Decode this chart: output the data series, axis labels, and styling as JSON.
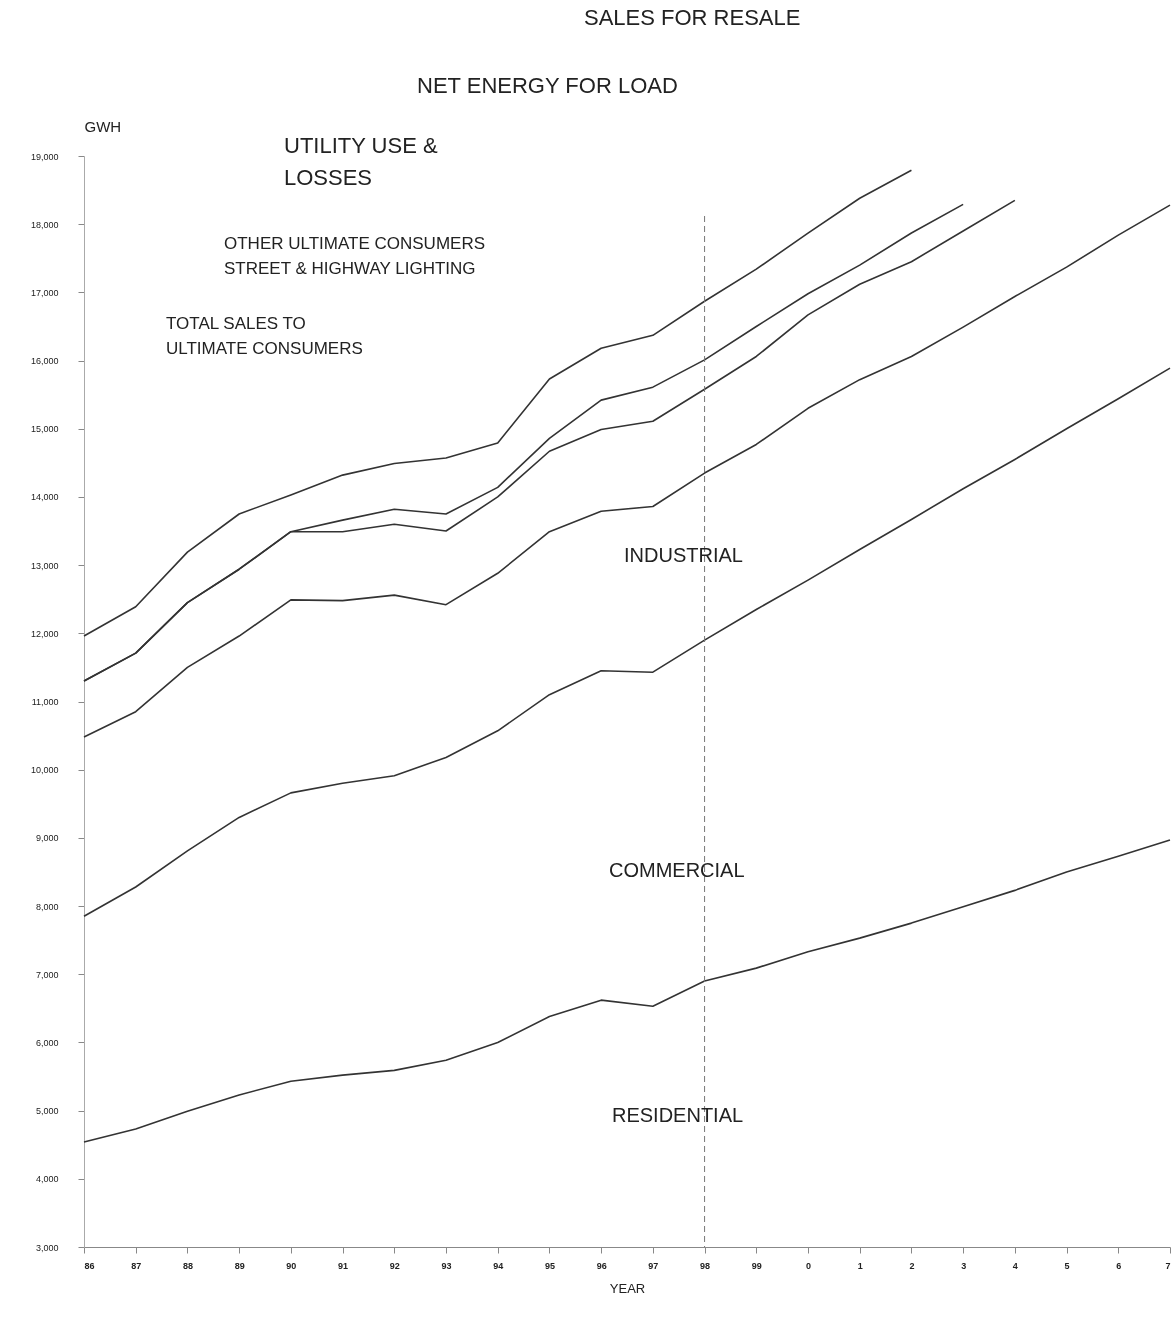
{
  "chart_data": {
    "type": "line",
    "xlabel": "YEAR",
    "ylabel": "GWH",
    "categories": [
      "86",
      "87",
      "88",
      "89",
      "90",
      "91",
      "92",
      "93",
      "94",
      "95",
      "96",
      "97",
      "98",
      "99",
      "0",
      "1",
      "2",
      "3",
      "4",
      "5",
      "6",
      "7"
    ],
    "ylim": [
      3000,
      19000
    ],
    "yticks": [
      {
        "value": 3000,
        "label": "3,000"
      },
      {
        "value": 4000,
        "label": "4,000"
      },
      {
        "value": 5000,
        "label": "5,000"
      },
      {
        "value": 6000,
        "label": "6,000"
      },
      {
        "value": 7000,
        "label": "7,000"
      },
      {
        "value": 8000,
        "label": "8,000"
      },
      {
        "value": 9000,
        "label": "9,000"
      },
      {
        "value": 10000,
        "label": "10,000"
      },
      {
        "value": 11000,
        "label": "11,000"
      },
      {
        "value": 12000,
        "label": "12,000"
      },
      {
        "value": 13000,
        "label": "13,000"
      },
      {
        "value": 14000,
        "label": "14,000"
      },
      {
        "value": 15000,
        "label": "15,000"
      },
      {
        "value": 16000,
        "label": "16,000"
      },
      {
        "value": 17000,
        "label": "17,000"
      },
      {
        "value": 18000,
        "label": "18,000"
      },
      {
        "value": 19000,
        "label": "19,000"
      }
    ],
    "grid": false,
    "marker": "none",
    "line_style": "solid",
    "series": [
      {
        "color": "#333333",
        "values": [
          4540,
          4730,
          4990,
          5230,
          5430,
          5520,
          5590,
          5740,
          6000,
          6380,
          6620,
          6530,
          6900,
          7090,
          7330,
          7530,
          7750,
          7990,
          8230,
          8500,
          8730,
          8970
        ]
      },
      {
        "color": "#333333",
        "values": [
          7850,
          8280,
          8810,
          9300,
          9660,
          9800,
          9910,
          10180,
          10570,
          11100,
          11450,
          11430,
          11900,
          12350,
          12780,
          13230,
          13670,
          14120,
          14550,
          15000,
          15440,
          15890
        ]
      },
      {
        "color": "#333333",
        "values": [
          10480,
          10850,
          11500,
          11960,
          12490,
          12480,
          12560,
          12420,
          12880,
          13490,
          13790,
          13860,
          14350,
          14770,
          15300,
          15720,
          16060,
          16490,
          16940,
          17370,
          17840,
          18280
        ]
      },
      {
        "color": "#333333",
        "values": [
          11300,
          11710,
          12450,
          12940,
          13490,
          13490,
          13600,
          13500,
          14000,
          14670,
          14990,
          15110,
          15580,
          16060,
          16670,
          17120,
          17450,
          17900,
          18350,
          null,
          null,
          null
        ]
      },
      {
        "color": "#333333",
        "values": [
          11300,
          11710,
          12450,
          12940,
          13490,
          13660,
          13820,
          13750,
          14140,
          14860,
          15420,
          15610,
          16010,
          16500,
          16980,
          17400,
          17870,
          18290,
          null,
          null,
          null,
          null
        ]
      },
      {
        "color": "#333333",
        "values": [
          11960,
          12390,
          13190,
          13750,
          14030,
          14320,
          14490,
          14570,
          14790,
          15730,
          16180,
          16370,
          16870,
          17340,
          17870,
          18380,
          18790,
          null,
          null,
          null,
          null,
          null
        ]
      }
    ],
    "ref_lines": [
      {
        "axis": "x",
        "value": "98",
        "color": "#777777",
        "line_style": "dashed"
      }
    ],
    "annotations": [
      "SALES FOR RESALE",
      "NET ENERGY FOR LOAD",
      "UTILITY USE &\nLOSSES",
      "OTHER ULTIMATE CONSUMERS\nSTREET & HIGHWAY LIGHTING",
      "TOTAL SALES TO\nULTIMATE CONSUMERS",
      "INDUSTRIAL",
      "COMMERCIAL",
      "RESIDENTIAL"
    ]
  }
}
